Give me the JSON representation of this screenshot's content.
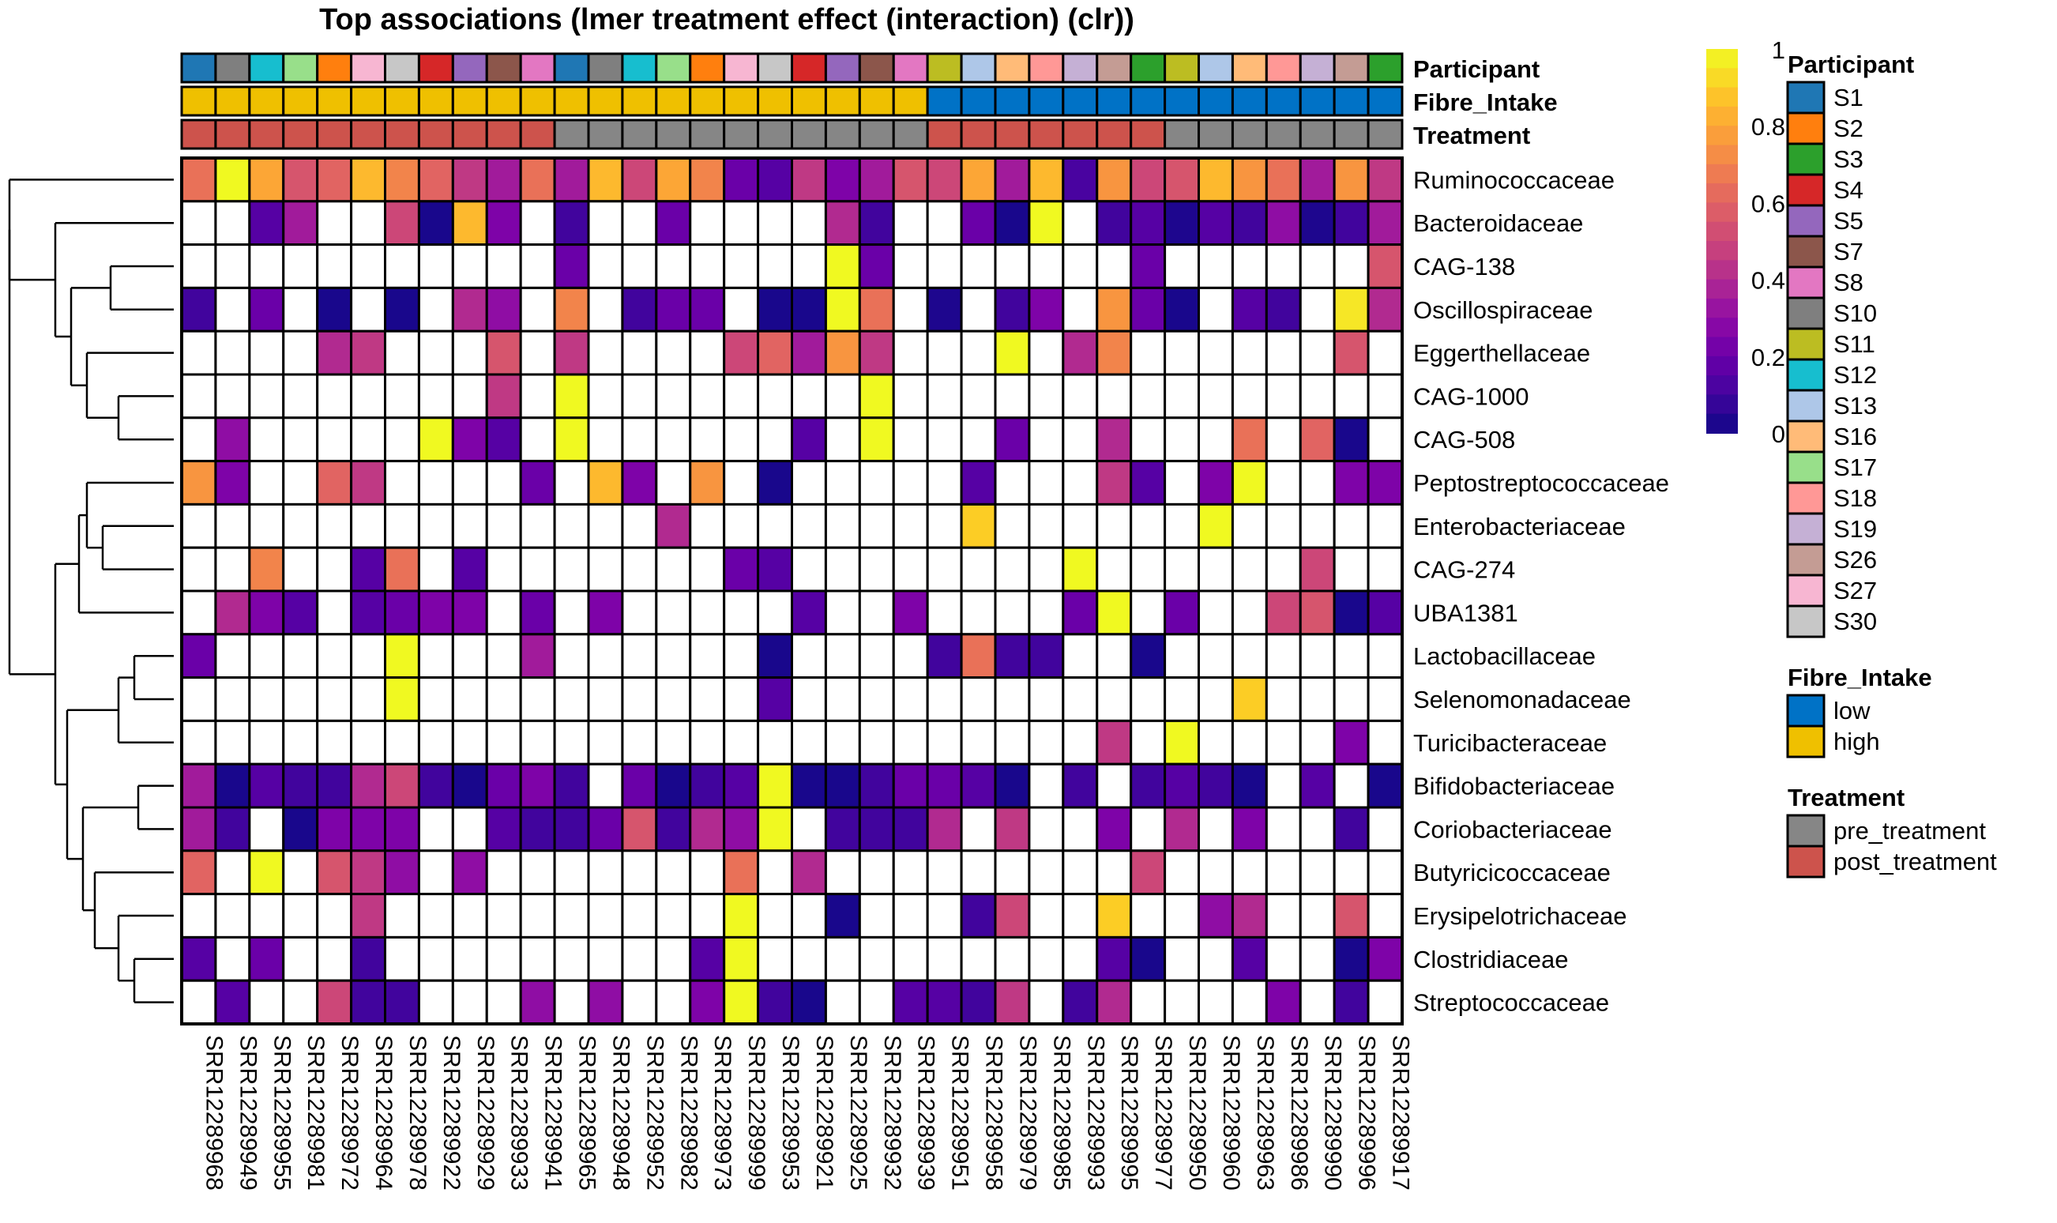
{
  "chart_data": {
    "type": "heatmap",
    "title": "Top associations (lmer treatment effect (interaction) (clr))",
    "color_scale": {
      "name": "plasma",
      "min": 0,
      "max": 1,
      "ticks": [
        "0",
        "0.2",
        "0.4",
        "0.6",
        "0.8",
        "1"
      ],
      "tick_values": [
        0,
        0.2,
        0.4,
        0.6,
        0.8,
        1
      ]
    },
    "columns": [
      "SRR12289968",
      "SRR12289949",
      "SRR12289955",
      "SRR12289981",
      "SRR12289972",
      "SRR12289964",
      "SRR12289978",
      "SRR12289922",
      "SRR12289929",
      "SRR12289933",
      "SRR12289941",
      "SRR12289965",
      "SRR12289948",
      "SRR12289952",
      "SRR12289982",
      "SRR12289973",
      "SRR12289999",
      "SRR12289953",
      "SRR12289921",
      "SRR12289925",
      "SRR12289932",
      "SRR12289939",
      "SRR12289951",
      "SRR12289958",
      "SRR12289979",
      "SRR12289985",
      "SRR12289993",
      "SRR12289995",
      "SRR12289977",
      "SRR12289950",
      "SRR12289960",
      "SRR12289963",
      "SRR12289986",
      "SRR12289990",
      "SRR12289996",
      "SRR12289917"
    ],
    "rows": [
      "Ruminococcaceae",
      "Bacteroidaceae",
      "CAG-138",
      "Oscillospiraceae",
      "Eggerthellaceae",
      "CAG-1000",
      "CAG-508",
      "Peptostreptococcaceae",
      "Enterobacteriaceae",
      "CAG-274",
      "UBA1381",
      "Lactobacillaceae",
      "Selenomonadaceae",
      "Turicibacteraceae",
      "Bifidobacteriaceae",
      "Coriobacteriaceae",
      "Butyricicoccaceae",
      "Erysipelotrichaceae",
      "Clostridiaceae",
      "Streptococcaceae"
    ],
    "values": [
      [
        0.65,
        1.0,
        0.8,
        0.55,
        0.6,
        0.85,
        0.7,
        0.6,
        0.45,
        0.35,
        0.65,
        0.35,
        0.85,
        0.5,
        0.8,
        0.7,
        0.2,
        0.15,
        0.45,
        0.25,
        0.35,
        0.55,
        0.5,
        0.8,
        0.35,
        0.85,
        0.12,
        0.75,
        0.5,
        0.55,
        0.85,
        0.75,
        0.65,
        0.35,
        0.75,
        0.45
      ],
      [
        null,
        null,
        0.15,
        0.35,
        null,
        null,
        0.5,
        0.02,
        0.85,
        0.25,
        null,
        0.1,
        null,
        null,
        0.2,
        null,
        null,
        null,
        null,
        0.4,
        0.1,
        null,
        null,
        0.2,
        0.02,
        1.0,
        null,
        0.1,
        0.15,
        0.03,
        0.15,
        0.1,
        0.3,
        0.03,
        0.1,
        0.35
      ],
      [
        null,
        null,
        null,
        null,
        null,
        null,
        null,
        null,
        null,
        null,
        null,
        0.2,
        null,
        null,
        null,
        null,
        null,
        null,
        null,
        1.0,
        0.2,
        null,
        null,
        null,
        null,
        null,
        null,
        null,
        0.2,
        null,
        null,
        null,
        null,
        null,
        null,
        0.55
      ],
      [
        0.1,
        null,
        0.2,
        null,
        0.02,
        null,
        0.02,
        null,
        0.4,
        0.3,
        null,
        0.7,
        null,
        0.1,
        0.2,
        0.2,
        null,
        0.02,
        0.02,
        1.0,
        0.65,
        null,
        0.03,
        null,
        0.1,
        0.25,
        null,
        0.75,
        0.2,
        0.02,
        null,
        0.15,
        0.1,
        null,
        0.95,
        0.4
      ],
      [
        null,
        null,
        null,
        null,
        0.4,
        0.45,
        null,
        null,
        null,
        0.55,
        null,
        0.45,
        null,
        null,
        null,
        null,
        0.5,
        0.6,
        0.35,
        0.75,
        0.45,
        null,
        null,
        null,
        1.0,
        null,
        0.4,
        0.7,
        null,
        null,
        null,
        null,
        null,
        null,
        0.55,
        null
      ],
      [
        null,
        null,
        null,
        null,
        null,
        null,
        null,
        null,
        null,
        0.45,
        null,
        1.0,
        null,
        null,
        null,
        null,
        null,
        null,
        null,
        null,
        1.0,
        null,
        null,
        null,
        null,
        null,
        null,
        null,
        null,
        null,
        null,
        null,
        null,
        null,
        null,
        null
      ],
      [
        null,
        0.3,
        null,
        null,
        null,
        null,
        null,
        1.0,
        0.25,
        0.15,
        null,
        1.0,
        null,
        null,
        null,
        null,
        null,
        null,
        0.15,
        null,
        1.0,
        null,
        null,
        null,
        0.2,
        null,
        null,
        0.4,
        null,
        null,
        null,
        0.65,
        null,
        0.6,
        0.02,
        null
      ],
      [
        0.75,
        0.25,
        null,
        null,
        0.6,
        0.45,
        null,
        null,
        null,
        null,
        0.2,
        null,
        0.85,
        0.25,
        null,
        0.75,
        null,
        0.02,
        null,
        null,
        null,
        null,
        null,
        0.15,
        null,
        null,
        null,
        0.45,
        0.15,
        null,
        0.25,
        1.0,
        null,
        null,
        0.25,
        0.25
      ],
      [
        null,
        null,
        null,
        null,
        null,
        null,
        null,
        null,
        null,
        null,
        null,
        null,
        null,
        null,
        0.4,
        null,
        null,
        null,
        null,
        null,
        null,
        null,
        null,
        0.9,
        null,
        null,
        null,
        null,
        null,
        null,
        1.0,
        null,
        null,
        null,
        null,
        null
      ],
      [
        null,
        null,
        0.7,
        null,
        null,
        0.15,
        0.65,
        null,
        0.15,
        null,
        null,
        null,
        null,
        null,
        null,
        null,
        0.2,
        0.15,
        null,
        null,
        null,
        null,
        null,
        null,
        null,
        null,
        1.0,
        null,
        null,
        null,
        null,
        null,
        null,
        0.5,
        null,
        null
      ],
      [
        null,
        0.4,
        0.25,
        0.15,
        null,
        0.15,
        0.2,
        0.25,
        0.25,
        null,
        0.2,
        null,
        0.25,
        null,
        null,
        null,
        null,
        null,
        0.15,
        null,
        null,
        0.25,
        null,
        null,
        null,
        null,
        0.2,
        1.0,
        null,
        0.2,
        null,
        null,
        0.5,
        0.55,
        0.02,
        0.15
      ],
      [
        0.2,
        null,
        null,
        null,
        null,
        null,
        1.0,
        null,
        null,
        null,
        0.35,
        null,
        null,
        null,
        null,
        null,
        null,
        0.02,
        null,
        null,
        null,
        null,
        0.1,
        0.65,
        0.1,
        0.1,
        null,
        null,
        0.02,
        null,
        null,
        null,
        null,
        null,
        null,
        null
      ],
      [
        null,
        null,
        null,
        null,
        null,
        null,
        1.0,
        null,
        null,
        null,
        null,
        null,
        null,
        null,
        null,
        null,
        null,
        0.15,
        null,
        null,
        null,
        null,
        null,
        null,
        null,
        null,
        null,
        null,
        null,
        null,
        null,
        0.9,
        null,
        null,
        null,
        null
      ],
      [
        null,
        null,
        null,
        null,
        null,
        null,
        null,
        null,
        null,
        null,
        null,
        null,
        null,
        null,
        null,
        null,
        null,
        null,
        null,
        null,
        null,
        null,
        null,
        null,
        null,
        null,
        null,
        0.45,
        null,
        1.0,
        null,
        null,
        null,
        null,
        0.25,
        null
      ],
      [
        0.35,
        0.02,
        0.15,
        0.1,
        0.1,
        0.4,
        0.5,
        0.1,
        0.02,
        0.2,
        0.25,
        0.1,
        null,
        0.2,
        0.02,
        0.1,
        0.15,
        1.0,
        0.02,
        0.02,
        0.1,
        0.2,
        0.2,
        0.15,
        0.02,
        null,
        0.1,
        null,
        0.1,
        0.15,
        0.1,
        0.02,
        null,
        0.15,
        null,
        0.02
      ],
      [
        0.35,
        0.1,
        null,
        0.02,
        0.25,
        0.25,
        0.25,
        null,
        null,
        0.15,
        0.1,
        0.1,
        0.2,
        0.55,
        0.1,
        0.4,
        0.3,
        1.0,
        null,
        0.1,
        0.1,
        0.1,
        0.4,
        null,
        0.45,
        null,
        null,
        0.25,
        null,
        0.4,
        null,
        0.25,
        null,
        null,
        0.1,
        null
      ],
      [
        0.6,
        null,
        1.0,
        null,
        0.55,
        0.45,
        0.3,
        null,
        0.3,
        null,
        null,
        null,
        null,
        null,
        null,
        null,
        0.65,
        null,
        0.4,
        null,
        null,
        null,
        null,
        null,
        null,
        null,
        null,
        null,
        0.5,
        null,
        null,
        null,
        null,
        null,
        null,
        null
      ],
      [
        null,
        null,
        null,
        null,
        null,
        0.45,
        null,
        null,
        null,
        null,
        null,
        null,
        null,
        null,
        null,
        null,
        1.0,
        null,
        null,
        0.02,
        null,
        null,
        null,
        0.1,
        0.5,
        null,
        null,
        0.9,
        null,
        null,
        0.3,
        0.4,
        null,
        null,
        0.55,
        null
      ],
      [
        0.15,
        null,
        0.2,
        null,
        null,
        0.1,
        null,
        null,
        null,
        null,
        null,
        null,
        null,
        null,
        null,
        0.15,
        1.0,
        null,
        null,
        null,
        null,
        null,
        null,
        null,
        null,
        null,
        null,
        0.15,
        0.02,
        null,
        null,
        0.15,
        null,
        null,
        0.02,
        0.25
      ],
      [
        null,
        0.15,
        null,
        null,
        0.5,
        0.1,
        0.1,
        null,
        null,
        null,
        0.3,
        null,
        0.3,
        null,
        null,
        0.25,
        1.0,
        0.1,
        0.02,
        null,
        null,
        0.15,
        0.15,
        0.1,
        0.45,
        null,
        0.1,
        0.4,
        null,
        null,
        null,
        null,
        0.25,
        null,
        0.1,
        null
      ]
    ],
    "annotations": {
      "Participant": [
        "S1",
        "S10",
        "S12",
        "S17",
        "S2",
        "S27",
        "S30",
        "S4",
        "S5",
        "S7",
        "S8",
        "S1",
        "S10",
        "S12",
        "S17",
        "S2",
        "S27",
        "S30",
        "S4",
        "S5",
        "S7",
        "S8",
        "S11",
        "S13",
        "S16",
        "S18",
        "S19",
        "S26",
        "S3",
        "S11",
        "S13",
        "S16",
        "S18",
        "S19",
        "S26",
        "S3"
      ],
      "Fibre_Intake": [
        "high",
        "high",
        "high",
        "high",
        "high",
        "high",
        "high",
        "high",
        "high",
        "high",
        "high",
        "high",
        "high",
        "high",
        "high",
        "high",
        "high",
        "high",
        "high",
        "high",
        "high",
        "high",
        "low",
        "low",
        "low",
        "low",
        "low",
        "low",
        "low",
        "low",
        "low",
        "low",
        "low",
        "low",
        "low",
        "low"
      ],
      "Treatment": [
        "post_treatment",
        "post_treatment",
        "post_treatment",
        "post_treatment",
        "post_treatment",
        "post_treatment",
        "post_treatment",
        "post_treatment",
        "post_treatment",
        "post_treatment",
        "post_treatment",
        "pre_treatment",
        "pre_treatment",
        "pre_treatment",
        "pre_treatment",
        "pre_treatment",
        "pre_treatment",
        "pre_treatment",
        "pre_treatment",
        "pre_treatment",
        "pre_treatment",
        "pre_treatment",
        "post_treatment",
        "post_treatment",
        "post_treatment",
        "post_treatment",
        "post_treatment",
        "post_treatment",
        "post_treatment",
        "pre_treatment",
        "pre_treatment",
        "pre_treatment",
        "pre_treatment",
        "pre_treatment",
        "pre_treatment",
        "pre_treatment"
      ]
    },
    "annotation_labels": [
      "Participant",
      "Fibre_Intake",
      "Treatment"
    ],
    "legends": {
      "Participant": {
        "title": "Participant",
        "items": [
          {
            "label": "S1",
            "color": "#1f77b4"
          },
          {
            "label": "S2",
            "color": "#ff7f0e"
          },
          {
            "label": "S3",
            "color": "#2ca02c"
          },
          {
            "label": "S4",
            "color": "#d62728"
          },
          {
            "label": "S5",
            "color": "#9467bd"
          },
          {
            "label": "S7",
            "color": "#8c564b"
          },
          {
            "label": "S8",
            "color": "#e377c2"
          },
          {
            "label": "S10",
            "color": "#7f7f7f"
          },
          {
            "label": "S11",
            "color": "#bcbd22"
          },
          {
            "label": "S12",
            "color": "#17becf"
          },
          {
            "label": "S13",
            "color": "#aec7e8"
          },
          {
            "label": "S16",
            "color": "#ffbb78"
          },
          {
            "label": "S17",
            "color": "#98df8a"
          },
          {
            "label": "S18",
            "color": "#ff9896"
          },
          {
            "label": "S19",
            "color": "#c5b0d5"
          },
          {
            "label": "S26",
            "color": "#c49c94"
          },
          {
            "label": "S27",
            "color": "#f7b6d2"
          },
          {
            "label": "S30",
            "color": "#c7c7c7"
          }
        ]
      },
      "Fibre_Intake": {
        "title": "Fibre_Intake",
        "items": [
          {
            "label": "low",
            "color": "#0072c6"
          },
          {
            "label": "high",
            "color": "#efc000"
          }
        ]
      },
      "Treatment": {
        "title": "Treatment",
        "items": [
          {
            "label": "pre_treatment",
            "color": "#868686"
          },
          {
            "label": "post_treatment",
            "color": "#cd534c"
          }
        ]
      }
    },
    "dendrogram": "row"
  }
}
